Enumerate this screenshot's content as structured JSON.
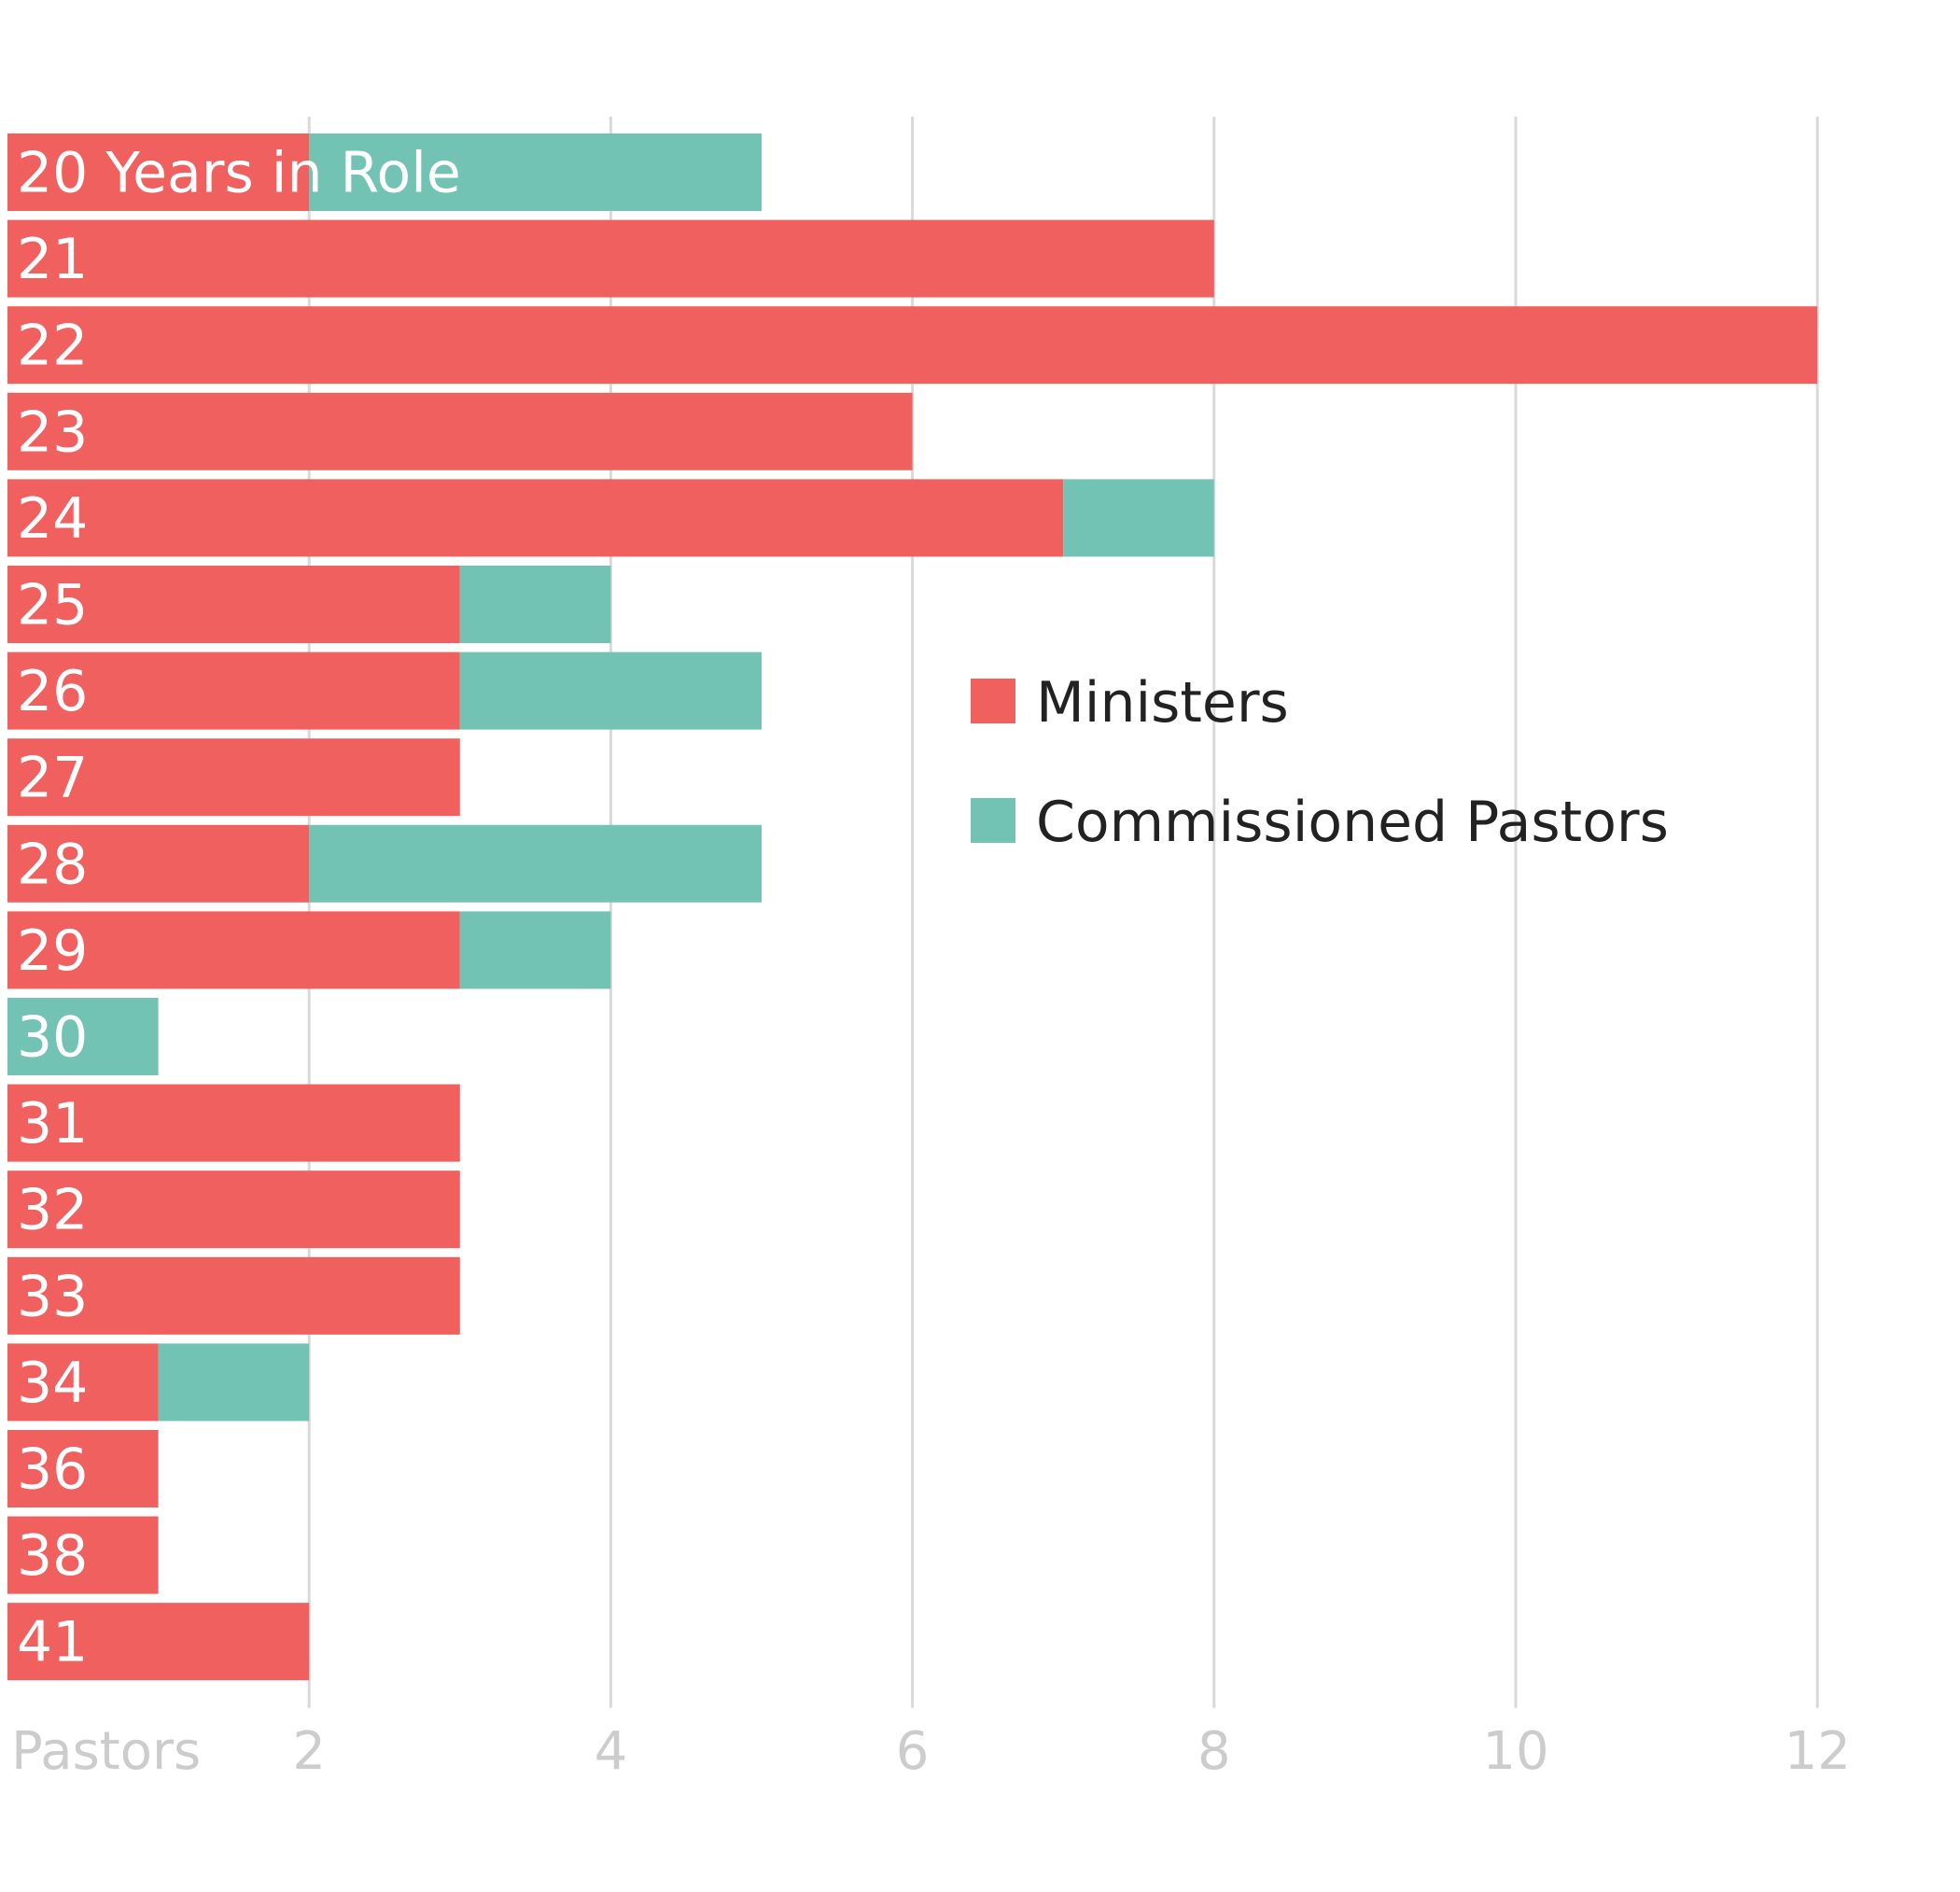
{
  "chart_data": {
    "type": "bar",
    "orientation": "horizontal",
    "stacked": true,
    "categories": [
      "20 Years in Role",
      "21",
      "22",
      "23",
      "24",
      "25",
      "26",
      "27",
      "28",
      "29",
      "30",
      "31",
      "32",
      "33",
      "34",
      "36",
      "38",
      "41"
    ],
    "series": [
      {
        "name": "Ministers",
        "color": "#f0605e",
        "values": [
          2,
          8,
          12,
          6,
          7,
          3,
          3,
          3,
          2,
          3,
          0,
          3,
          3,
          3,
          1,
          1,
          1,
          2
        ]
      },
      {
        "name": "Commissioned Pastors",
        "color": "#72c3b3",
        "values": [
          3,
          0,
          0,
          0,
          1,
          1,
          2,
          0,
          3,
          1,
          1,
          0,
          0,
          0,
          1,
          0,
          0,
          0
        ]
      }
    ],
    "x_tick_labels": [
      "Pastors",
      "2",
      "4",
      "6",
      "8",
      "10",
      "12"
    ],
    "xlim": [
      0,
      12
    ],
    "grid": true,
    "legend_position": "right-center"
  }
}
